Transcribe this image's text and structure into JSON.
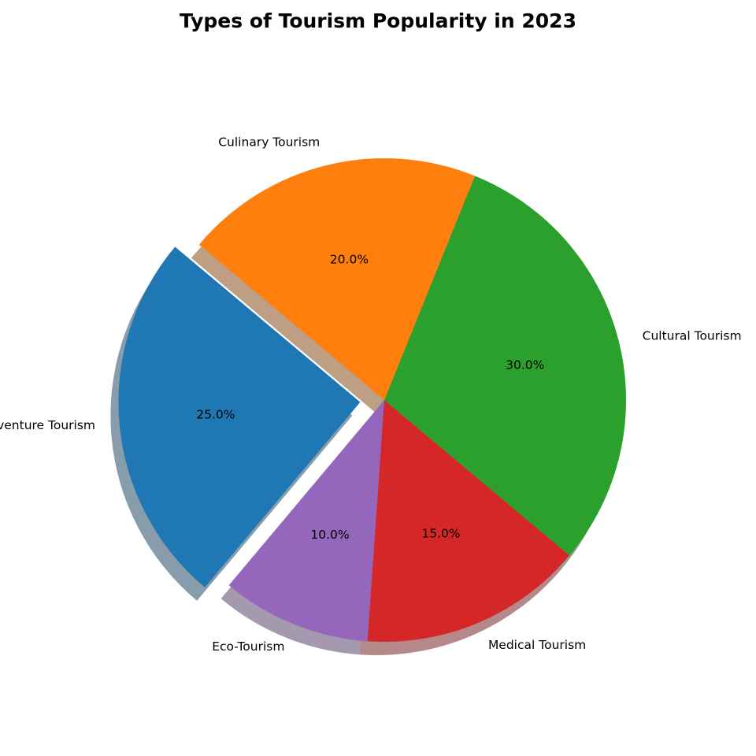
{
  "chart_data": {
    "type": "pie",
    "title": "Types of Tourism Popularity in 2023",
    "categories": [
      "Adventure Tourism",
      "Eco-Tourism",
      "Medical Tourism",
      "Cultural Tourism",
      "Culinary Tourism"
    ],
    "values": [
      25,
      10,
      15,
      30,
      20
    ],
    "percent_labels": [
      "25.0%",
      "10.0%",
      "15.0%",
      "30.0%",
      "20.0%"
    ],
    "colors": [
      "#1f77b4",
      "#9467bd",
      "#d62728",
      "#2ca02c",
      "#ff7f0e"
    ],
    "explode": [
      0.1,
      0,
      0,
      0,
      0
    ],
    "start_angle_deg": 140,
    "direction": "counterclockwise",
    "shadow": true
  }
}
